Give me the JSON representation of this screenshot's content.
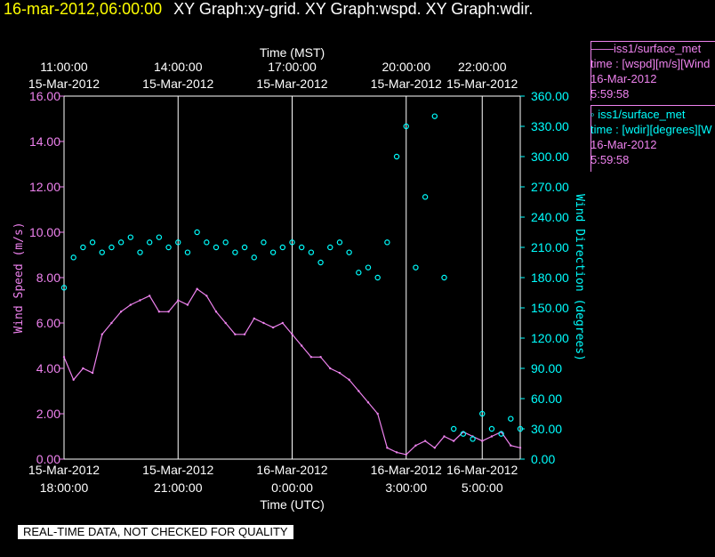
{
  "header": {
    "timestamp": "16-mar-2012,06:00:00",
    "title": "XY Graph:xy-grid.  XY Graph:wspd.  XY Graph:wdir."
  },
  "legend": [
    {
      "name": "——iss1/surface_met",
      "line2": "time : [wspd][m/s][Wind",
      "line3": "16-Mar-2012",
      "line4": "5:59:58",
      "color": "#ee82ee"
    },
    {
      "name": "◦  iss1/surface_met",
      "line2": "time : [wdir][degrees][W",
      "line3": "16-Mar-2012",
      "line4": "5:59:58",
      "color": "#00ffff"
    }
  ],
  "quality_note": "REAL-TIME DATA, NOT CHECKED FOR QUALITY",
  "chart_data": {
    "type": "line",
    "top_axis_title": "Time (MST)",
    "top_ticks": [
      {
        "t": 0,
        "l1": "11:00:00",
        "l2": "15-Mar-2012"
      },
      {
        "t": 3,
        "l1": "14:00:00",
        "l2": "15-Mar-2012"
      },
      {
        "t": 6,
        "l1": "17:00:00",
        "l2": "15-Mar-2012"
      },
      {
        "t": 9,
        "l1": "20:00:00",
        "l2": "15-Mar-2012"
      },
      {
        "t": 11,
        "l1": "22:00:00",
        "l2": "15-Mar-2012"
      }
    ],
    "xlabel": "Time (UTC)",
    "bottom_ticks": [
      {
        "t": 0,
        "l1": "15-Mar-2012",
        "l2": "18:00:00"
      },
      {
        "t": 3,
        "l1": "15-Mar-2012",
        "l2": "21:00:00"
      },
      {
        "t": 6,
        "l1": "16-Mar-2012",
        "l2": "0:00:00"
      },
      {
        "t": 9,
        "l1": "16-Mar-2012",
        "l2": "3:00:00"
      },
      {
        "t": 11,
        "l1": "16-Mar-2012",
        "l2": "5:00:00"
      }
    ],
    "xlim": [
      0,
      12
    ],
    "ylabel_left": "Wind Speed (m/s)",
    "ylim_left": [
      0,
      16
    ],
    "left_ticks": [
      "0.00",
      "2.00",
      "4.00",
      "6.00",
      "8.00",
      "10.00",
      "12.00",
      "14.00",
      "16.00"
    ],
    "ylabel_right": "Wind Direction (degrees)",
    "ylim_right": [
      0,
      360
    ],
    "right_ticks": [
      "0.00",
      "30.00",
      "60.00",
      "90.00",
      "120.00",
      "150.00",
      "180.00",
      "210.00",
      "240.00",
      "270.00",
      "300.00",
      "330.00",
      "360.00"
    ],
    "grid": true,
    "series": [
      {
        "name": "iss1/surface_met wspd",
        "axis": "left",
        "style": "line",
        "color": "#ee82ee",
        "x": [
          0,
          0.25,
          0.5,
          0.75,
          1,
          1.25,
          1.5,
          1.75,
          2,
          2.25,
          2.5,
          2.75,
          3,
          3.25,
          3.5,
          3.75,
          4,
          4.25,
          4.5,
          4.75,
          5,
          5.25,
          5.5,
          5.75,
          6,
          6.25,
          6.5,
          6.75,
          7,
          7.25,
          7.5,
          7.75,
          8,
          8.25,
          8.5,
          8.75,
          9,
          9.25,
          9.5,
          9.75,
          10,
          10.25,
          10.5,
          10.75,
          11,
          11.25,
          11.5,
          11.75,
          12
        ],
        "y": [
          4.5,
          3.5,
          4.0,
          3.8,
          5.5,
          6.0,
          6.5,
          6.8,
          7.0,
          7.2,
          6.5,
          6.5,
          7.0,
          6.8,
          7.5,
          7.2,
          6.5,
          6.0,
          5.5,
          5.5,
          6.2,
          6.0,
          5.8,
          6.0,
          5.5,
          5.0,
          4.5,
          4.5,
          4.0,
          3.8,
          3.5,
          3.0,
          2.5,
          2.0,
          0.5,
          0.3,
          0.2,
          0.6,
          0.8,
          0.5,
          1.0,
          0.8,
          1.2,
          1.0,
          0.8,
          1.0,
          1.2,
          0.6,
          0.5
        ]
      },
      {
        "name": "iss1/surface_met wdir",
        "axis": "right",
        "style": "scatter",
        "color": "#00ffff",
        "x": [
          0,
          0.25,
          0.5,
          0.75,
          1,
          1.25,
          1.5,
          1.75,
          2,
          2.25,
          2.5,
          2.75,
          3,
          3.25,
          3.5,
          3.75,
          4,
          4.25,
          4.5,
          4.75,
          5,
          5.25,
          5.5,
          5.75,
          6,
          6.25,
          6.5,
          6.75,
          7,
          7.25,
          7.5,
          7.75,
          8,
          8.25,
          8.5,
          8.75,
          9,
          9.25,
          9.5,
          9.75,
          10,
          10.25,
          10.5,
          10.75,
          11,
          11.25,
          11.5,
          11.75,
          12
        ],
        "y": [
          170,
          200,
          210,
          215,
          205,
          210,
          215,
          220,
          205,
          215,
          220,
          210,
          215,
          205,
          225,
          215,
          210,
          215,
          205,
          210,
          200,
          215,
          205,
          210,
          215,
          210,
          205,
          195,
          210,
          215,
          205,
          185,
          190,
          180,
          215,
          300,
          330,
          190,
          260,
          340,
          180,
          30,
          25,
          20,
          45,
          30,
          25,
          40,
          30
        ]
      }
    ]
  }
}
